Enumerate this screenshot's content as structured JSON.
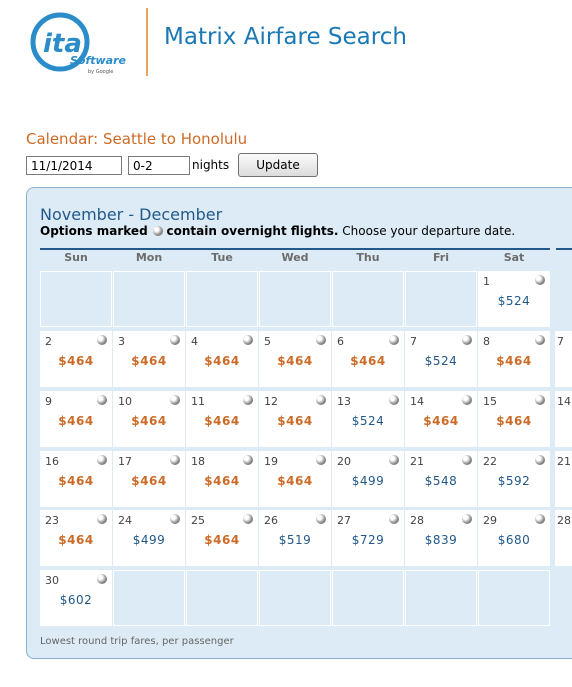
{
  "header": {
    "logo_text": "ita",
    "logo_software": "Software",
    "logo_by": "by Google",
    "app_title": "Matrix Airfare Search"
  },
  "calendar": {
    "title": "Calendar: Seattle to Honolulu",
    "date_value": "11/1/2014",
    "nights_value": "0-2",
    "nights_label": "nights",
    "update_label": "Update",
    "month_title": "November - December",
    "note_bold_1": "Options marked",
    "note_bold_2": "contain overnight flights.",
    "note_rest": "Choose your departure date.",
    "weekdays": [
      "Sun",
      "Mon",
      "Tue",
      "Wed",
      "Thu",
      "Fri",
      "Sat"
    ],
    "footer": "Lowest round trip fares, per passenger",
    "colors": {
      "orange": "#cc6b27",
      "blue": "#22598a",
      "panel": "#dcebf5"
    },
    "weeks": [
      [
        null,
        null,
        null,
        null,
        null,
        null,
        {
          "day": "1",
          "price": "$524",
          "style": "blue"
        }
      ],
      [
        {
          "day": "2",
          "price": "$464",
          "style": "orange"
        },
        {
          "day": "3",
          "price": "$464",
          "style": "orange"
        },
        {
          "day": "4",
          "price": "$464",
          "style": "orange"
        },
        {
          "day": "5",
          "price": "$464",
          "style": "orange"
        },
        {
          "day": "6",
          "price": "$464",
          "style": "orange"
        },
        {
          "day": "7",
          "price": "$524",
          "style": "blue"
        },
        {
          "day": "8",
          "price": "$464",
          "style": "orange"
        }
      ],
      [
        {
          "day": "9",
          "price": "$464",
          "style": "orange"
        },
        {
          "day": "10",
          "price": "$464",
          "style": "orange"
        },
        {
          "day": "11",
          "price": "$464",
          "style": "orange"
        },
        {
          "day": "12",
          "price": "$464",
          "style": "orange"
        },
        {
          "day": "13",
          "price": "$524",
          "style": "blue"
        },
        {
          "day": "14",
          "price": "$464",
          "style": "orange"
        },
        {
          "day": "15",
          "price": "$464",
          "style": "orange"
        }
      ],
      [
        {
          "day": "16",
          "price": "$464",
          "style": "orange"
        },
        {
          "day": "17",
          "price": "$464",
          "style": "orange"
        },
        {
          "day": "18",
          "price": "$464",
          "style": "orange"
        },
        {
          "day": "19",
          "price": "$464",
          "style": "orange"
        },
        {
          "day": "20",
          "price": "$499",
          "style": "blue"
        },
        {
          "day": "21",
          "price": "$548",
          "style": "blue"
        },
        {
          "day": "22",
          "price": "$592",
          "style": "blue"
        }
      ],
      [
        {
          "day": "23",
          "price": "$464",
          "style": "orange"
        },
        {
          "day": "24",
          "price": "$499",
          "style": "blue"
        },
        {
          "day": "25",
          "price": "$464",
          "style": "orange"
        },
        {
          "day": "26",
          "price": "$519",
          "style": "blue"
        },
        {
          "day": "27",
          "price": "$729",
          "style": "blue"
        },
        {
          "day": "28",
          "price": "$839",
          "style": "blue"
        },
        {
          "day": "29",
          "price": "$680",
          "style": "blue"
        }
      ],
      [
        {
          "day": "30",
          "price": "$602",
          "style": "blue"
        },
        null,
        null,
        null,
        null,
        null,
        null
      ]
    ],
    "next_month_days": [
      "7",
      "14",
      "21",
      "28"
    ]
  }
}
